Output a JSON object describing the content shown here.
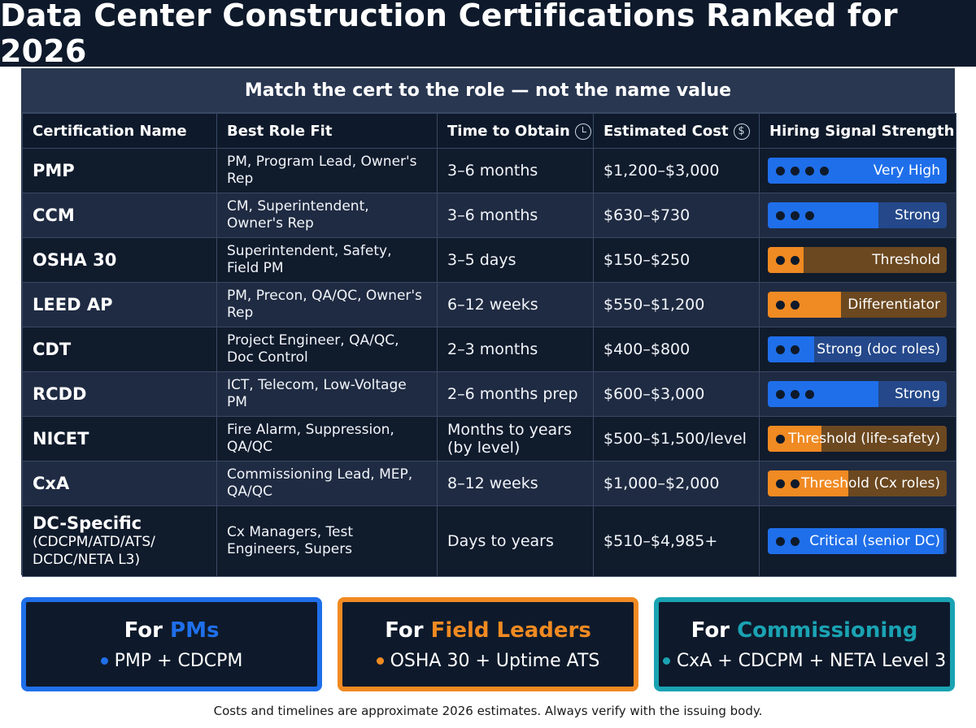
{
  "title": "Data Center Construction Certifications Ranked for 2026",
  "subtitle": "Match the cert to the role — not the name value",
  "columns": {
    "name": "Certification Name",
    "role": "Best Role Fit",
    "time": "Time to Obtain",
    "cost": "Estimated Cost",
    "signal": "Hiring Signal Strength"
  },
  "header_icons": {
    "time": "clock-icon",
    "cost": "dollar-icon"
  },
  "colors": {
    "blue_accent": "#1f6fea",
    "orange_accent": "#f08a22",
    "teal_accent": "#1aa3b3",
    "dark_background": "#0e1a2b"
  },
  "rows": [
    {
      "name": "PMP",
      "name_sub": "",
      "role": "PM, Program Lead, Owner's Rep",
      "time": "3–6 months",
      "cost": "$1,200–$3,000",
      "signal": {
        "label": "Very High",
        "dots": 4,
        "level": 1.0,
        "color": "blue"
      }
    },
    {
      "name": "CCM",
      "name_sub": "",
      "role": "CM, Superintendent, Owner's Rep",
      "time": "3–6 months",
      "cost": "$630–$730",
      "signal": {
        "label": "Strong",
        "dots": 3,
        "level": 0.62,
        "color": "blue"
      }
    },
    {
      "name": "OSHA 30",
      "name_sub": "",
      "role": "Superintendent, Safety, Field PM",
      "time": "3–5 days",
      "cost": "$150–$250",
      "signal": {
        "label": "Threshold",
        "dots": 2,
        "level": 0.2,
        "color": "orange"
      }
    },
    {
      "name": "LEED AP",
      "name_sub": "",
      "role": "PM, Precon, QA/QC, Owner's Rep",
      "time": "6–12 weeks",
      "cost": "$550–$1,200",
      "signal": {
        "label": "Differentiator",
        "dots": 2,
        "level": 0.41,
        "color": "orange"
      }
    },
    {
      "name": "CDT",
      "name_sub": "",
      "role": "Project Engineer, QA/QC, Doc Control",
      "time": "2–3 months",
      "cost": "$400–$800",
      "signal": {
        "label": "Strong (doc roles)",
        "dots": 2,
        "level": 0.26,
        "color": "blue"
      }
    },
    {
      "name": "RCDD",
      "name_sub": "",
      "role": "ICT, Telecom, Low-Voltage PM",
      "time": "2–6 months prep",
      "cost": "$600–$3,000",
      "signal": {
        "label": "Strong",
        "dots": 3,
        "level": 0.62,
        "color": "blue"
      }
    },
    {
      "name": "NICET",
      "name_sub": "",
      "role": "Fire Alarm, Suppression, QA/QC",
      "time": "Months to years (by level)",
      "cost": "$500–$1,500/level",
      "signal": {
        "label": "Threshold (life-safety)",
        "dots": 1,
        "level": 0.3,
        "color": "orange"
      }
    },
    {
      "name": "CxA",
      "name_sub": "",
      "role": "Commissioning Lead, MEP, QA/QC",
      "time": "8–12 weeks",
      "cost": "$1,000–$2,000",
      "signal": {
        "label": "Threshold (Cx roles)",
        "dots": 2,
        "level": 0.45,
        "color": "orange"
      }
    },
    {
      "name": "DC-Specific",
      "name_sub": "(CDCPM/ATD/ATS/ DCDC/NETA L3)",
      "role": "Cx Managers, Test Engineers, Supers",
      "time": "Days to years",
      "cost": "$510–$4,985+",
      "signal": {
        "label": "Critical (senior DC)",
        "dots": 2,
        "level": 0.98,
        "color": "blue"
      }
    }
  ],
  "cards": [
    {
      "prefix": "For ",
      "highlight": "PMs",
      "body": "PMP + CDCPM",
      "color": "#1f6fea"
    },
    {
      "prefix": "For ",
      "highlight": "Field Leaders",
      "body": "OSHA 30 + Uptime ATS",
      "color": "#f08a22"
    },
    {
      "prefix": "For ",
      "highlight": "Commissioning",
      "body": "CxA + CDCPM + NETA Level 3",
      "color": "#1aa3b3"
    }
  ],
  "footer": "Costs and timelines are approximate 2026 estimates. Always verify with the issuing body."
}
